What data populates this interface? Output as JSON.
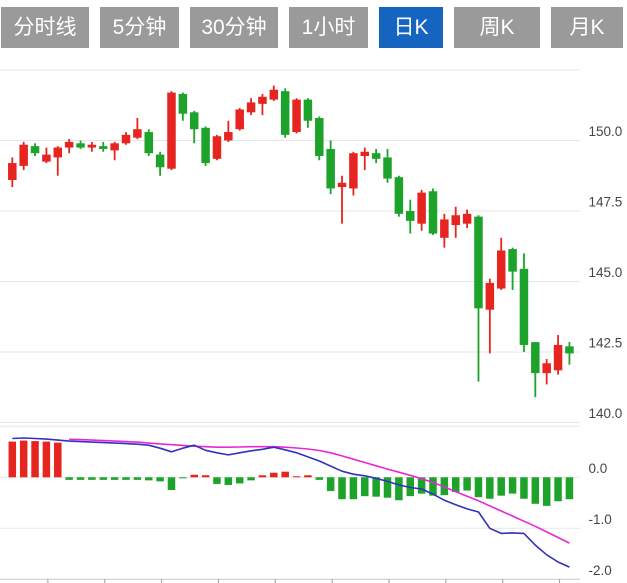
{
  "tabs": [
    {
      "label": "分时线",
      "active": false
    },
    {
      "label": "5分钟",
      "active": false
    },
    {
      "label": "30分钟",
      "active": false
    },
    {
      "label": "1小时",
      "active": false
    },
    {
      "label": "日K",
      "active": true
    },
    {
      "label": "周K",
      "active": false
    },
    {
      "label": "月K",
      "active": false
    }
  ],
  "colors": {
    "up": "#e62420",
    "down": "#1da32a",
    "dif_line": "#3232bb",
    "dea_line": "#e629d4",
    "tab_bg": "#9a9a9a",
    "tab_active_bg": "#1565c0",
    "tab_text": "#ffffff",
    "grid": "#e7e7e7",
    "axis": "#c9c9c9",
    "tick": "#9a9a9a",
    "label_text": "#454545"
  },
  "chart_data": {
    "type": "candlestick",
    "title": "",
    "legend": [],
    "grid": "horizontal-only",
    "panes": [
      {
        "name": "price",
        "ylim": [
          139.6,
          152.9
        ],
        "gridlines": [
          {
            "v": 152.5,
            "label": null
          },
          {
            "v": 150.0,
            "label": "150.0"
          },
          {
            "v": 147.5,
            "label": "147.5"
          },
          {
            "v": 145.0,
            "label": "145.0"
          },
          {
            "v": 142.5,
            "label": "142.5"
          },
          {
            "v": 140.0,
            "label": "140.0"
          }
        ]
      },
      {
        "name": "macd",
        "ylim": [
          -2.1,
          1.0
        ],
        "gridlines": [
          {
            "v": 1.0,
            "label": null
          },
          {
            "v": 0.0,
            "label": "0.0"
          },
          {
            "v": -1.0,
            "label": "-1.0"
          },
          {
            "v": -2.0,
            "label": "-2.0"
          }
        ]
      }
    ],
    "candles_ohlc": [
      [
        148.6,
        149.4,
        148.35,
        149.2
      ],
      [
        149.1,
        149.95,
        148.95,
        149.85
      ],
      [
        149.8,
        149.9,
        149.45,
        149.55
      ],
      [
        149.25,
        149.75,
        149.2,
        149.5
      ],
      [
        149.4,
        149.8,
        148.75,
        149.75
      ],
      [
        149.75,
        150.05,
        149.55,
        149.95
      ],
      [
        149.9,
        150.0,
        149.7,
        149.75
      ],
      [
        149.75,
        149.95,
        149.6,
        149.85
      ],
      [
        149.8,
        149.95,
        149.6,
        149.7
      ],
      [
        149.65,
        149.95,
        149.3,
        149.9
      ],
      [
        149.9,
        150.3,
        149.85,
        150.2
      ],
      [
        150.1,
        150.8,
        150.05,
        150.4
      ],
      [
        150.3,
        150.4,
        149.45,
        149.55
      ],
      [
        149.5,
        149.6,
        148.75,
        149.05
      ],
      [
        149.0,
        151.75,
        148.95,
        151.7
      ],
      [
        151.65,
        151.7,
        150.7,
        150.95
      ],
      [
        151.0,
        151.05,
        149.9,
        150.4
      ],
      [
        150.45,
        150.5,
        149.1,
        149.2
      ],
      [
        149.35,
        150.2,
        149.3,
        150.15
      ],
      [
        150.0,
        150.7,
        149.95,
        150.3
      ],
      [
        150.4,
        151.15,
        150.35,
        151.1
      ],
      [
        151.0,
        151.5,
        150.9,
        151.35
      ],
      [
        151.3,
        151.65,
        150.9,
        151.55
      ],
      [
        151.45,
        151.95,
        151.4,
        151.8
      ],
      [
        151.75,
        151.85,
        150.1,
        150.2
      ],
      [
        150.3,
        151.5,
        150.25,
        151.45
      ],
      [
        151.45,
        151.5,
        150.45,
        150.7
      ],
      [
        150.8,
        150.85,
        149.3,
        149.45
      ],
      [
        149.7,
        150.0,
        148.1,
        148.3
      ],
      [
        148.35,
        148.75,
        147.05,
        148.5
      ],
      [
        148.3,
        149.6,
        148.05,
        149.55
      ],
      [
        149.45,
        149.75,
        148.95,
        149.6
      ],
      [
        149.55,
        149.7,
        149.2,
        149.35
      ],
      [
        149.4,
        149.7,
        148.5,
        148.65
      ],
      [
        148.7,
        148.75,
        147.3,
        147.4
      ],
      [
        147.5,
        147.9,
        146.7,
        147.15
      ],
      [
        147.05,
        148.25,
        146.8,
        148.15
      ],
      [
        148.2,
        148.3,
        146.65,
        146.7
      ],
      [
        146.55,
        147.4,
        146.2,
        147.2
      ],
      [
        147.0,
        147.65,
        146.55,
        147.35
      ],
      [
        147.05,
        147.55,
        146.9,
        147.4
      ],
      [
        147.3,
        147.35,
        141.45,
        144.05
      ],
      [
        144.0,
        145.1,
        142.45,
        144.95
      ],
      [
        144.75,
        146.55,
        144.7,
        146.1
      ],
      [
        146.15,
        146.2,
        144.7,
        145.35
      ],
      [
        145.45,
        146.0,
        142.5,
        142.75
      ],
      [
        142.85,
        142.85,
        140.9,
        141.75
      ],
      [
        141.75,
        142.25,
        141.35,
        142.1
      ],
      [
        141.85,
        143.1,
        141.7,
        142.75
      ],
      [
        142.7,
        142.85,
        142.05,
        142.45
      ]
    ],
    "macd": {
      "histogram": [
        0.7,
        0.72,
        0.71,
        0.7,
        0.68,
        -0.05,
        -0.05,
        -0.05,
        -0.05,
        -0.05,
        -0.05,
        -0.05,
        -0.06,
        -0.08,
        -0.25,
        -0.02,
        0.05,
        0.04,
        -0.13,
        -0.15,
        -0.12,
        -0.06,
        0.04,
        0.09,
        0.11,
        0.02,
        0.04,
        -0.05,
        -0.27,
        -0.43,
        -0.43,
        -0.37,
        -0.38,
        -0.4,
        -0.45,
        -0.37,
        -0.32,
        -0.36,
        -0.35,
        -0.29,
        -0.26,
        -0.39,
        -0.42,
        -0.36,
        -0.32,
        -0.42,
        -0.52,
        -0.56,
        -0.47,
        -0.43
      ],
      "dif": [
        0.76,
        0.77,
        0.76,
        0.75,
        0.73,
        0.71,
        0.7,
        0.69,
        0.68,
        0.67,
        0.66,
        0.65,
        0.63,
        0.57,
        0.5,
        0.57,
        0.63,
        0.53,
        0.48,
        0.44,
        0.48,
        0.52,
        0.55,
        0.59,
        0.54,
        0.48,
        0.4,
        0.32,
        0.22,
        0.12,
        0.06,
        0.03,
        -0.02,
        -0.08,
        -0.15,
        -0.2,
        -0.23,
        -0.33,
        -0.45,
        -0.54,
        -0.62,
        -0.68,
        -1.0,
        -1.1,
        -1.09,
        -1.1,
        -1.33,
        -1.52,
        -1.66,
        -1.76
      ],
      "dea": [
        null,
        null,
        null,
        null,
        null,
        0.745,
        0.74,
        0.73,
        0.72,
        0.71,
        0.7,
        0.69,
        0.67,
        0.655,
        0.64,
        0.625,
        0.61,
        0.6,
        0.59,
        0.59,
        0.595,
        0.6,
        0.6,
        0.6,
        0.59,
        0.575,
        0.555,
        0.525,
        0.48,
        0.42,
        0.355,
        0.29,
        0.225,
        0.16,
        0.1,
        0.04,
        -0.03,
        -0.1,
        -0.19,
        -0.28,
        -0.37,
        -0.46,
        -0.56,
        -0.66,
        -0.76,
        -0.86,
        -0.96,
        -1.07,
        -1.18,
        -1.29
      ]
    }
  }
}
